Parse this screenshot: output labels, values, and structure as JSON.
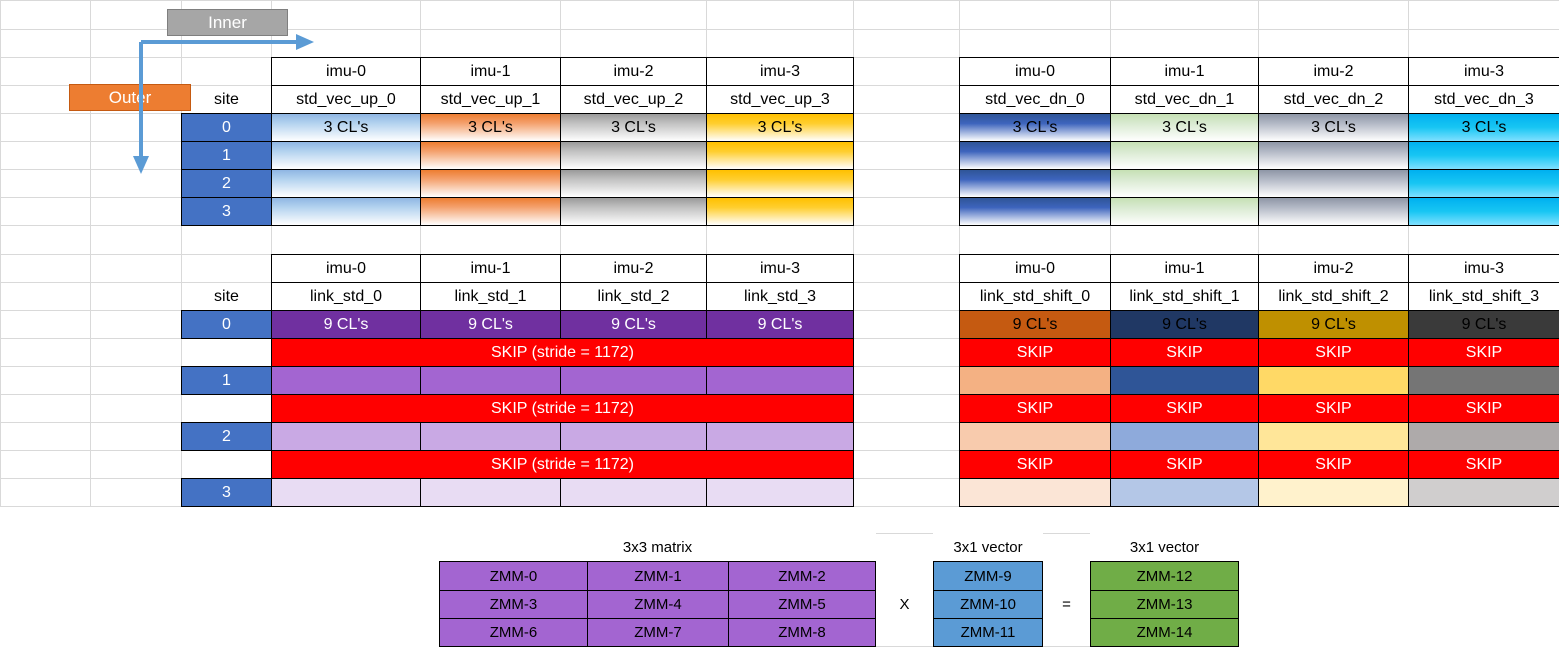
{
  "labels": {
    "inner": "Inner",
    "outer": "Outer",
    "site": "site"
  },
  "imu_headers": [
    "imu-0",
    "imu-1",
    "imu-2",
    "imu-3"
  ],
  "site_numbers": [
    "0",
    "1",
    "2",
    "3"
  ],
  "vec_up": {
    "names": [
      "std_vec_up_0",
      "std_vec_up_1",
      "std_vec_up_2",
      "std_vec_up_3"
    ],
    "first_row_text": "3 CL's",
    "colors": [
      "#b4d3ef",
      "#f4a26f",
      "#c2c2c2",
      "#ffce2e"
    ]
  },
  "vec_dn": {
    "names": [
      "std_vec_dn_0",
      "std_vec_dn_1",
      "std_vec_dn_2",
      "std_vec_dn_3"
    ],
    "first_row_text": "3 CL's",
    "colors": [
      "#3d64bd",
      "#d9ead1",
      "#b3b9c6",
      "#18c6f3"
    ]
  },
  "link_std": {
    "names": [
      "link_std_0",
      "link_std_1",
      "link_std_2",
      "link_std_3"
    ],
    "first_row_text": "9 CL's",
    "skip_text": "SKIP (stride = 1172)",
    "row_colors": [
      "#7030a0",
      "#a365d1",
      "#c9a9e4",
      "#e8dcf3"
    ]
  },
  "link_std_shift": {
    "names": [
      "link_std_shift_0",
      "link_std_shift_1",
      "link_std_shift_2",
      "link_std_shift_3"
    ],
    "first_row_text": "9 CL's",
    "skip_text": "SKIP",
    "column_colors": [
      [
        "#c55a11",
        "#f4b183",
        "#f8cbad",
        "#fbe5d6"
      ],
      [
        "#203864",
        "#2f5597",
        "#8eaadb",
        "#b4c7e7"
      ],
      [
        "#bf9000",
        "#ffd966",
        "#ffe699",
        "#fff2cc"
      ],
      [
        "#3a3a3a",
        "#757575",
        "#aeaaaa",
        "#d0cece"
      ]
    ]
  },
  "matrix": {
    "title_matrix": "3x3 matrix",
    "title_vec_in": "3x1 vector",
    "title_vec_out": "3x1 vector",
    "cells": [
      [
        "ZMM-0",
        "ZMM-1",
        "ZMM-2"
      ],
      [
        "ZMM-3",
        "ZMM-4",
        "ZMM-5"
      ],
      [
        "ZMM-6",
        "ZMM-7",
        "ZMM-8"
      ]
    ],
    "vec_in": [
      "ZMM-9",
      "ZMM-10",
      "ZMM-11"
    ],
    "vec_out": [
      "ZMM-12",
      "ZMM-13",
      "ZMM-14"
    ],
    "times": "X",
    "equals": "=",
    "colors": {
      "matrix": "#a365d1",
      "vec_in": "#5b9bd5",
      "vec_out": "#70ad47"
    }
  },
  "colors": {
    "site_blue": "#4472c4",
    "skip_red": "#ff0000",
    "gridline": "#d9d9d9",
    "inner_tag": "#a6a6a6",
    "outer_tag": "#ed7d31",
    "arrow": "#5b9bd5"
  }
}
